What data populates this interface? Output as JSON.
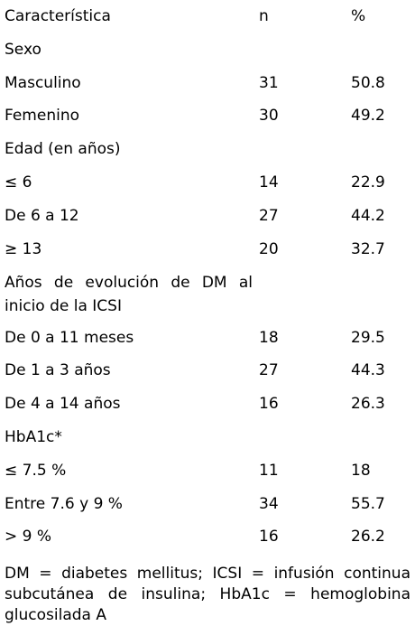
{
  "table": {
    "header": [
      "Característica",
      "n",
      "%"
    ],
    "rows": [
      [
        "Sexo"
      ],
      [
        "Masculino",
        "31",
        "50.8"
      ],
      [
        "Femenino",
        "30",
        "49.2"
      ],
      [
        "Edad (en años)"
      ],
      [
        "≤ 6",
        "14",
        "22.9"
      ],
      [
        "De 6 a 12",
        "27",
        "44.2"
      ],
      [
        "≥ 13",
        "20",
        "32.7"
      ],
      [
        "Años de evolución de DM al inicio de la ICSI"
      ],
      [
        "De 0 a 11 meses",
        "18",
        "29.5"
      ],
      [
        "De 1 a 3 años",
        "27",
        "44.3"
      ],
      [
        "De 4 a 14 años",
        "16",
        "26.3"
      ],
      [
        "HbA1c*"
      ],
      [
        "≤ 7.5 %",
        "11",
        "18"
      ],
      [
        "Entre 7.6 y 9 %",
        "34",
        "55.7"
      ],
      [
        "> 9 %",
        "16",
        "26.2"
      ]
    ],
    "footnote": "DM = diabetes mellitus; ICSI = infusión continua subcutánea de insulina; HbA1c = hemoglobina glucosilada A"
  }
}
